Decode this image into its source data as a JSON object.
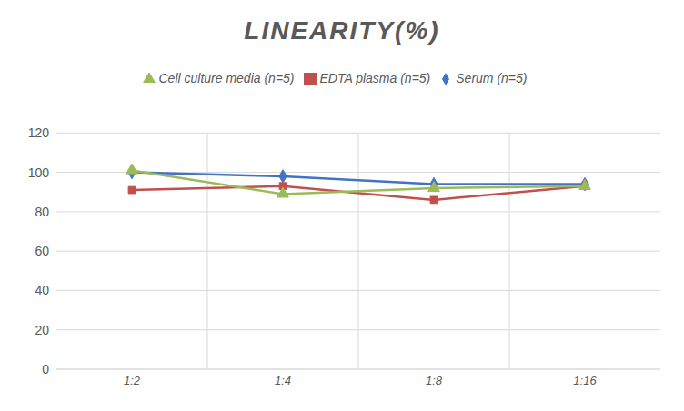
{
  "chart_data": {
    "type": "line",
    "title": "LINEARITY(%)",
    "categories": [
      "1:2",
      "1:4",
      "1:8",
      "1:16"
    ],
    "series": [
      {
        "name": "Serum (n=5)",
        "color": "#4472c4",
        "marker": "diamond",
        "values": [
          100,
          98,
          94,
          94
        ]
      },
      {
        "name": "EDTA plasma (n=5)",
        "color": "#c0504d",
        "marker": "square",
        "values": [
          91,
          93,
          86,
          93
        ]
      },
      {
        "name": "Cell culture media (n=5)",
        "color": "#9bbb59",
        "marker": "triangle",
        "values": [
          101,
          89,
          92,
          93
        ]
      }
    ],
    "ylim": [
      0,
      120
    ],
    "yticks": [
      0,
      20,
      40,
      60,
      80,
      100,
      120
    ],
    "grid": true,
    "legend": "top"
  }
}
